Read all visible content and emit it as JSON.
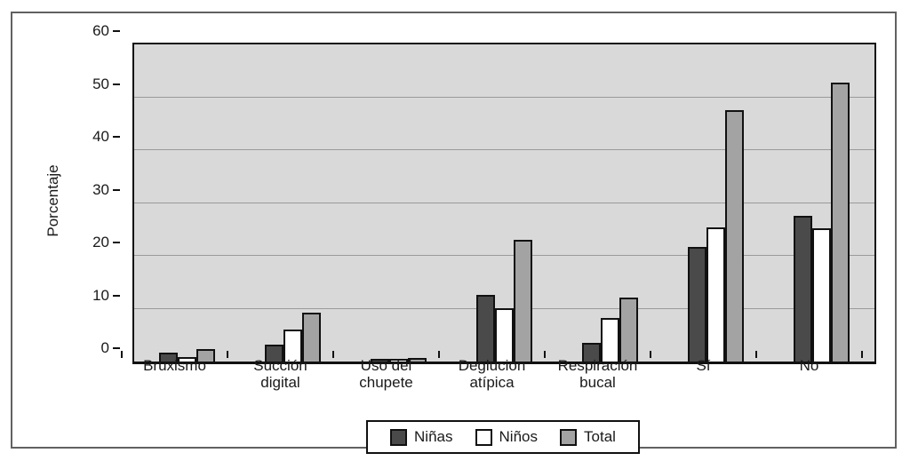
{
  "chart_data": {
    "type": "bar",
    "title": "",
    "xlabel": "",
    "ylabel": "Porcentaje",
    "ylim": [
      0,
      60
    ],
    "yticks": [
      0,
      10,
      20,
      30,
      40,
      50,
      60
    ],
    "grid": true,
    "legend_position": "bottom",
    "categories": [
      "Bruxismo",
      "Succión digital",
      "Uso del chupete",
      "Deglución atípica",
      "Respiración bucal",
      "Sí",
      "No"
    ],
    "category_label_lines": [
      [
        "Bruxismo"
      ],
      [
        "Succión",
        "digital"
      ],
      [
        "Uso del",
        "chupete"
      ],
      [
        "Deglución",
        "atípica"
      ],
      [
        "Respiración",
        "bucal"
      ],
      [
        "Sí"
      ],
      [
        "No"
      ]
    ],
    "series": [
      {
        "name": "Niñas",
        "color": "#4a4a4a",
        "values": [
          1.6,
          3.2,
          0.4,
          12.6,
          3.6,
          21.6,
          27.5
        ]
      },
      {
        "name": "Niños",
        "color": "#ffffff",
        "values": [
          0.8,
          6.1,
          0.1,
          10.1,
          8.2,
          25.4,
          25.2
        ]
      },
      {
        "name": "Total",
        "color": "#a3a3a3",
        "values": [
          2.3,
          9.3,
          0.7,
          23.0,
          12.1,
          47.5,
          52.8
        ]
      }
    ]
  },
  "colors": {
    "plot_background": "#d9d9d9",
    "gridline": "#9a9a9a",
    "bar_border": "#111111",
    "frame_border": "#616161",
    "legend_background": "#ffffff"
  }
}
